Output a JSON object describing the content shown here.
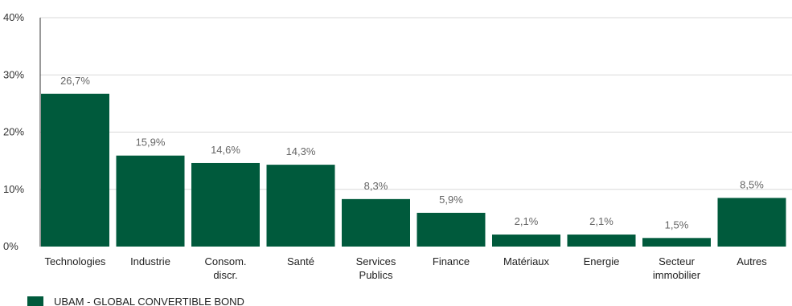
{
  "chart_data": {
    "type": "bar",
    "categories": [
      "Technologies",
      "Industrie",
      "Consom.\ndiscr.",
      "Santé",
      "Services\nPublics",
      "Finance",
      "Matériaux",
      "Energie",
      "Secteur\nimmobilier",
      "Autres"
    ],
    "series": [
      {
        "name": "UBAM - GLOBAL CONVERTIBLE BOND",
        "values": [
          26.7,
          15.9,
          14.6,
          14.3,
          8.3,
          5.9,
          2.1,
          2.1,
          1.5,
          8.5
        ],
        "labels": [
          "26,7%",
          "15,9%",
          "14,6%",
          "14,3%",
          "8,3%",
          "5,9%",
          "2,1%",
          "2,1%",
          "1,5%",
          "8,5%"
        ],
        "color": "#005a3c"
      }
    ],
    "ylim": [
      0,
      40
    ],
    "yticks": [
      0,
      10,
      20,
      30,
      40
    ],
    "ytick_labels": [
      "0%",
      "10%",
      "20%",
      "30%",
      "40%"
    ],
    "grid": true,
    "legend_position": "bottom-left",
    "title": "",
    "xlabel": "",
    "ylabel": ""
  }
}
